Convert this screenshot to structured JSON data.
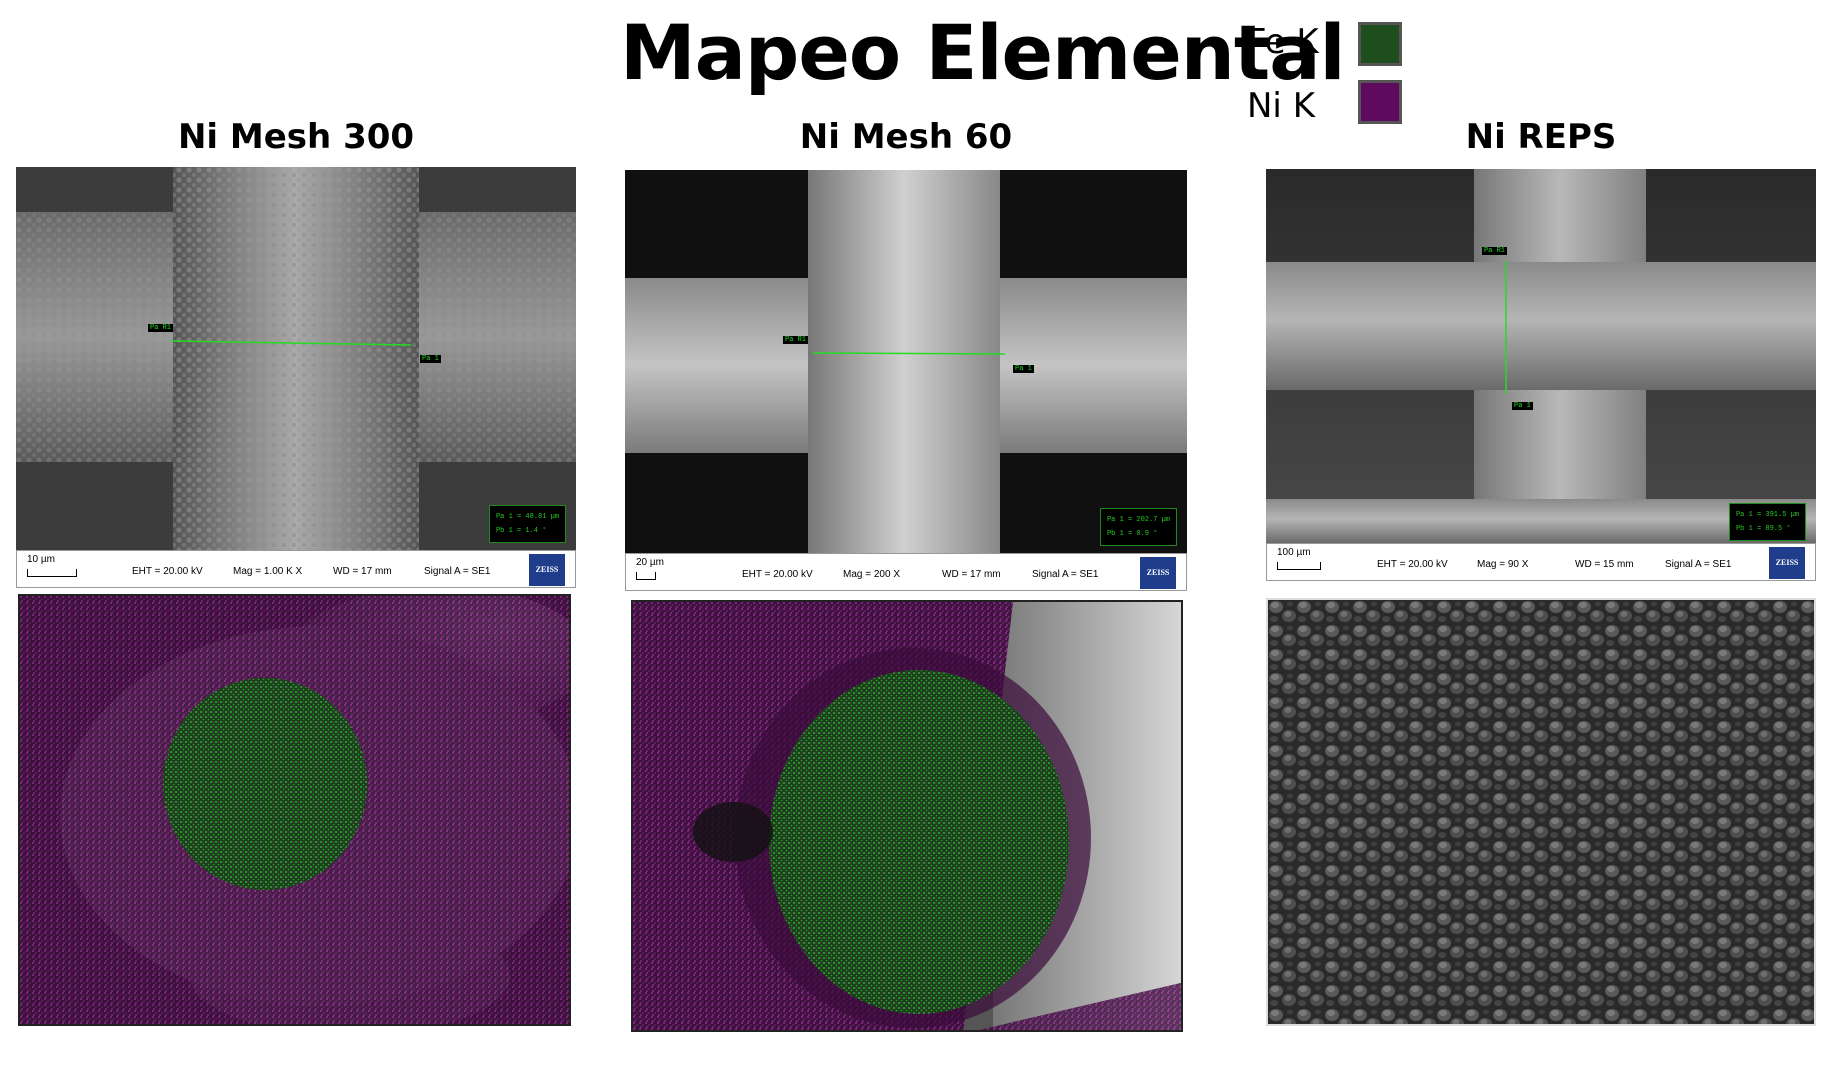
{
  "title": "Mapeo Elemental",
  "legend": [
    {
      "label": "Fe K",
      "color": "#1e4d1e"
    },
    {
      "label": "Ni K",
      "color": "#5e0a5e"
    }
  ],
  "columns": [
    {
      "title": "Ni Mesh 300",
      "sem": {
        "scale": "10 µm",
        "eht": "EHT = 20.00 kV",
        "mag": "Mag =    1.00 K X",
        "wd": "WD =   17 mm",
        "signal": "Signal A = SE1",
        "brand": "ZEISS",
        "pa": "Pa R1",
        "pb": "Pa 1",
        "measure1": "Pa 1 = 48.81 µm",
        "measure2": "Pb 1 = 1.4 °"
      }
    },
    {
      "title": "Ni Mesh 60",
      "sem": {
        "scale": "20 µm",
        "eht": "EHT = 20.00 kV",
        "mag": "Mag =    200 X",
        "wd": "WD =   17 mm",
        "signal": "Signal A = SE1",
        "brand": "ZEISS",
        "pa": "Pa R1",
        "pb": "Pa 1",
        "measure1": "Pa 1 = 202.7 µm",
        "measure2": "Pb 1 = 0.9 °"
      }
    },
    {
      "title": "Ni REPS",
      "sem": {
        "scale": "100 µm",
        "eht": "EHT = 20.00 kV",
        "mag": "Mag =    90 X",
        "wd": "WD =   15 mm",
        "signal": "Signal A = SE1",
        "brand": "ZEISS",
        "pa": "Pa R1",
        "pb": "Pa 1",
        "measure1": "Pa 1 = 391.5 µm",
        "measure2": "Pb 1 = 89.5 °"
      }
    }
  ]
}
